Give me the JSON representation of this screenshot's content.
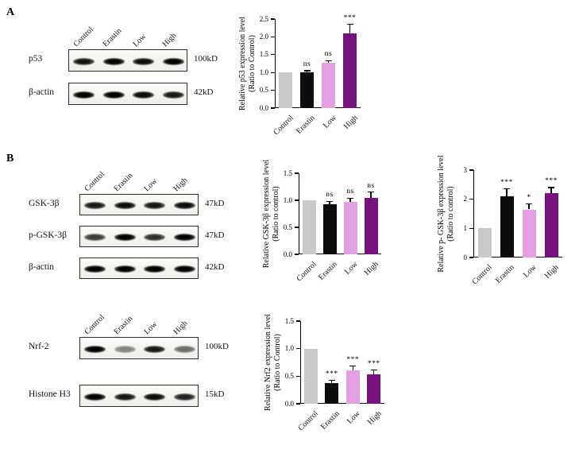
{
  "panels": {
    "a": {
      "label": "A"
    },
    "b": {
      "label": "B"
    }
  },
  "blots": [
    {
      "id": "blot-a",
      "lanes": [
        "Control",
        "Erastin",
        "Low",
        "High"
      ],
      "rows": [
        {
          "label": "p53",
          "kd": "100kD",
          "intensities": [
            0.92,
            1,
            0.95,
            1
          ]
        },
        {
          "label": "β-actin",
          "kd": "42kD",
          "intensities": [
            1,
            1,
            0.95,
            0.9
          ]
        }
      ]
    },
    {
      "id": "blot-b1",
      "lanes": [
        "Control",
        "Erastin",
        "Low",
        "High"
      ],
      "rows": [
        {
          "label": "GSK-3β",
          "kd": "47kD",
          "intensities": [
            0.9,
            0.95,
            0.9,
            0.95
          ]
        },
        {
          "label": "p-GSK-3β",
          "kd": "47kD",
          "intensities": [
            0.75,
            1,
            0.8,
            1
          ]
        },
        {
          "label": "β-actin",
          "kd": "42kD",
          "intensities": [
            1,
            1,
            1,
            1
          ]
        }
      ]
    },
    {
      "id": "blot-b2",
      "lanes": [
        "Control",
        "Erastin",
        "Low",
        "High"
      ],
      "rows": [
        {
          "label": "Nrf-2",
          "kd": "100kD",
          "intensities": [
            1,
            0.45,
            0.9,
            0.55
          ]
        },
        {
          "label": "Histone H3",
          "kd": "15kD",
          "intensities": [
            1,
            0.9,
            0.95,
            0.85
          ]
        }
      ]
    }
  ],
  "chart_data": [
    {
      "id": "p53",
      "type": "bar",
      "categories": [
        "Control",
        "Erastin",
        "Low",
        "High"
      ],
      "values": [
        1.0,
        1.0,
        1.27,
        2.1
      ],
      "errors": [
        0,
        0.05,
        0.06,
        0.25
      ],
      "annotations": [
        "",
        "ns",
        "ns",
        "***"
      ],
      "ylabel": "Relative p53 expression level\n(Ratio to Control)",
      "xlabel": "",
      "ylim": [
        0,
        2.5
      ],
      "yticks": [
        "0.0",
        "0.5",
        "1.0",
        "1.5",
        "2.0",
        "2.5"
      ],
      "grid": false,
      "legend": "none",
      "bar_colors": [
        "#c9c9c9",
        "#0d0d0d",
        "#e2a0e2",
        "#76117f"
      ]
    },
    {
      "id": "gsk3b",
      "type": "bar",
      "categories": [
        "Control",
        "Erastin",
        "Low",
        "High"
      ],
      "values": [
        1.0,
        0.93,
        0.97,
        1.05
      ],
      "errors": [
        0,
        0.05,
        0.07,
        0.1
      ],
      "annotations": [
        "",
        "ns",
        "ns",
        "ns"
      ],
      "ylabel": "Relative GSK-3β expression level\n(Ratio to control)",
      "xlabel": "",
      "ylim": [
        0,
        1.5
      ],
      "yticks": [
        "0.0",
        "0.5",
        "1.0",
        "1.5"
      ],
      "grid": false,
      "legend": "none",
      "bar_colors": [
        "#c9c9c9",
        "#0d0d0d",
        "#e2a0e2",
        "#76117f"
      ]
    },
    {
      "id": "p-gsk3b",
      "type": "bar",
      "categories": [
        "Control",
        "Erastin",
        "Low",
        "High"
      ],
      "values": [
        1.0,
        2.1,
        1.65,
        2.2
      ],
      "errors": [
        0,
        0.25,
        0.18,
        0.2
      ],
      "annotations": [
        "",
        "***",
        "*",
        "***"
      ],
      "ylabel": "Relative p- GSK-3β expression level\n(Ratio to control)",
      "xlabel": "",
      "ylim": [
        0,
        3
      ],
      "yticks": [
        "0",
        "1",
        "2",
        "3"
      ],
      "grid": false,
      "legend": "none",
      "bar_colors": [
        "#c9c9c9",
        "#0d0d0d",
        "#e2a0e2",
        "#76117f"
      ]
    },
    {
      "id": "nrf2",
      "type": "bar",
      "categories": [
        "Control",
        "Erastin",
        "Low",
        "High"
      ],
      "values": [
        1.0,
        0.38,
        0.6,
        0.53
      ],
      "errors": [
        0,
        0.04,
        0.08,
        0.08
      ],
      "annotations": [
        "",
        "***",
        "***",
        "***"
      ],
      "ylabel": "Relative Nrf2 expression level\n(Ratio to Control)",
      "xlabel": "",
      "ylim": [
        0,
        1.5
      ],
      "yticks": [
        "0.0",
        "0.5",
        "1.0",
        "1.5"
      ],
      "grid": false,
      "legend": "none",
      "bar_colors": [
        "#c9c9c9",
        "#0d0d0d",
        "#e2a0e2",
        "#76117f"
      ]
    }
  ]
}
